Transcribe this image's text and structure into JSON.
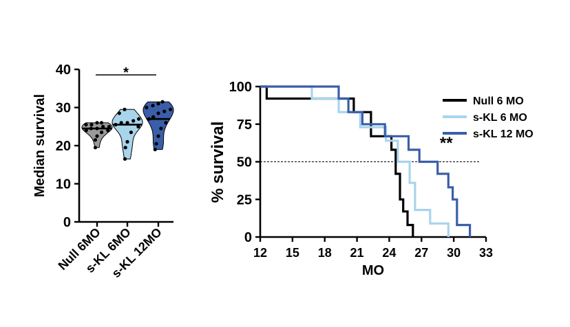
{
  "chart_data": [
    {
      "type": "violin",
      "title": "",
      "xlabel": "",
      "ylabel": "Median survival",
      "ylim": [
        0,
        40
      ],
      "yticks": [
        0,
        10,
        20,
        30,
        40
      ],
      "categories": [
        "Null 6MO",
        "s-KL 6MO",
        "s-KL 12MO"
      ],
      "colors": [
        "#9a9a9a",
        "#a8d4ec",
        "#3a5ea8"
      ],
      "groups": [
        {
          "name": "Null 6MO",
          "median": 24.5,
          "range": [
            19.5,
            26
          ],
          "points": [
            19.5,
            21.5,
            22.5,
            23.5,
            24,
            24,
            24.5,
            24.5,
            25,
            25,
            25.5,
            25.5,
            26,
            26
          ]
        },
        {
          "name": "s-KL 6MO",
          "median": 25.5,
          "range": [
            16.5,
            29.5
          ],
          "points": [
            16.5,
            19.5,
            21,
            23.5,
            25,
            25.5,
            26,
            26,
            26.5,
            27,
            28.5,
            29.5
          ]
        },
        {
          "name": "s-KL 12MO",
          "median": 27,
          "range": [
            19,
            31.5
          ],
          "points": [
            19,
            20.5,
            22.5,
            24.5,
            26,
            27,
            27.5,
            28.5,
            29,
            29.5,
            30,
            30.5,
            31,
            31.5
          ]
        }
      ],
      "annotations": [
        {
          "text": "*",
          "between": [
            "Null 6MO",
            "s-KL 12MO"
          ]
        }
      ]
    },
    {
      "type": "line",
      "subtype": "survival-step",
      "title": "",
      "xlabel": "MO",
      "ylabel": "% survival",
      "xlim": [
        12,
        33
      ],
      "ylim": [
        0,
        100
      ],
      "xticks": [
        12,
        15,
        18,
        21,
        24,
        27,
        30,
        33
      ],
      "yticks": [
        0,
        25,
        50,
        75,
        100
      ],
      "reference_line": {
        "y": 50,
        "style": "dashed"
      },
      "annotation": {
        "text": "**",
        "x": 29.3,
        "y": 58
      },
      "legend_position": "top-right",
      "series": [
        {
          "name": "Null 6 MO",
          "color": "#000000",
          "x": [
            12,
            12.6,
            12.6,
            20.7,
            20.7,
            22.3,
            22.3,
            24.2,
            24.2,
            24.6,
            24.6,
            25.0,
            25.0,
            25.3,
            25.3,
            25.7,
            25.7,
            26.2,
            26.2
          ],
          "y": [
            100,
            100,
            92,
            92,
            83,
            83,
            67,
            67,
            58,
            58,
            42,
            42,
            25,
            25,
            17,
            17,
            8,
            8,
            0
          ]
        },
        {
          "name": "s-KL 6 MO",
          "color": "#a8d4ec",
          "x": [
            12,
            16.8,
            16.8,
            19.3,
            19.3,
            21.3,
            21.3,
            23.7,
            23.7,
            24.8,
            24.8,
            25.9,
            25.9,
            26.4,
            26.4,
            27.8,
            27.8,
            29.5,
            29.5
          ],
          "y": [
            100,
            100,
            92,
            92,
            83,
            83,
            73,
            73,
            64,
            64,
            50,
            50,
            36,
            36,
            18,
            18,
            9,
            9,
            0
          ]
        },
        {
          "name": "s-KL 12 MO",
          "color": "#3a5ea8",
          "x": [
            12,
            19.3,
            19.3,
            20.2,
            20.2,
            21.5,
            21.5,
            23.6,
            23.6,
            25.8,
            25.8,
            26.8,
            26.8,
            28.5,
            28.5,
            29.5,
            29.5,
            29.9,
            29.9,
            30.3,
            30.3,
            31.5,
            31.5
          ],
          "y": [
            100,
            100,
            92,
            92,
            83,
            83,
            75,
            75,
            67,
            67,
            58,
            58,
            50,
            50,
            42,
            42,
            33,
            33,
            25,
            25,
            8,
            8,
            0
          ]
        }
      ]
    }
  ]
}
